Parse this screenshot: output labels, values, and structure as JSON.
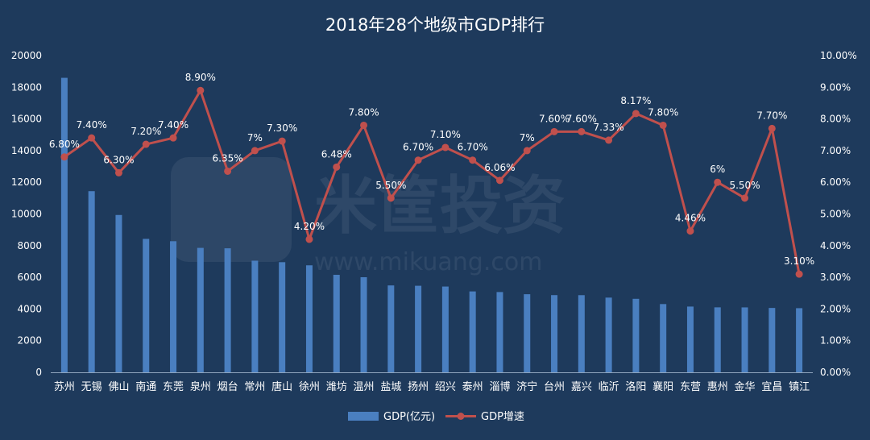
{
  "chart_data": {
    "type": "bar+line",
    "title": "2018年28个地级市GDP排行",
    "categories": [
      "苏州",
      "无锡",
      "佛山",
      "南通",
      "东莞",
      "泉州",
      "烟台",
      "常州",
      "唐山",
      "徐州",
      "潍坊",
      "温州",
      "盐城",
      "扬州",
      "绍兴",
      "泰州",
      "淄博",
      "济宁",
      "台州",
      "嘉兴",
      "临沂",
      "洛阳",
      "襄阳",
      "东营",
      "惠州",
      "金华",
      "宜昌",
      "镇江"
    ],
    "series": [
      {
        "name": "GDP(亿元)",
        "type": "bar",
        "axis": "left",
        "values": [
          18597,
          11439,
          9935,
          8427,
          8279,
          7858,
          7832,
          7050,
          6955,
          6756,
          6157,
          6006,
          5487,
          5466,
          5417,
          5108,
          5069,
          4931,
          4875,
          4872,
          4718,
          4641,
          4310,
          4152,
          4103,
          4100,
          4065,
          4050
        ]
      },
      {
        "name": "GDP增速",
        "type": "line",
        "axis": "right",
        "values": [
          6.8,
          7.4,
          6.3,
          7.2,
          7.4,
          8.9,
          6.35,
          7.0,
          7.3,
          4.2,
          6.48,
          7.8,
          5.5,
          6.7,
          7.1,
          6.7,
          6.06,
          7.0,
          7.6,
          7.6,
          7.33,
          8.17,
          7.8,
          4.46,
          6.0,
          5.5,
          7.7,
          3.1
        ],
        "labels": [
          "6.80%",
          "7.40%",
          "6.30%",
          "7.20%",
          "7.40%",
          "8.90%",
          "6.35%",
          "7%",
          "7.30%",
          "4.20%",
          "6.48%",
          "7.80%",
          "5.50%",
          "6.70%",
          "7.10%",
          "6.70%",
          "6.06%",
          "7%",
          "7.60%",
          "7.60%",
          "7.33%",
          "8.17%",
          "7.80%",
          "4.46%",
          "6%",
          "5.50%",
          "7.70%",
          "3.10%"
        ]
      }
    ],
    "ylim_left": [
      0,
      20000
    ],
    "yticks_left": [
      "0",
      "2000",
      "4000",
      "6000",
      "8000",
      "10000",
      "12000",
      "14000",
      "16000",
      "18000",
      "20000"
    ],
    "ylim_right": [
      0,
      10
    ],
    "yticks_right": [
      "0.00%",
      "1.00%",
      "2.00%",
      "3.00%",
      "4.00%",
      "5.00%",
      "6.00%",
      "7.00%",
      "8.00%",
      "9.00%",
      "10.00%"
    ],
    "legend_position": "bottom",
    "grid": false,
    "colors": {
      "background": "#1e3a5c",
      "bar": "#4a7fc0",
      "line": "#c0504d",
      "text": "#ffffff"
    }
  },
  "watermark": {
    "main": "米筐投资",
    "sub": "www.mikuang.com"
  }
}
